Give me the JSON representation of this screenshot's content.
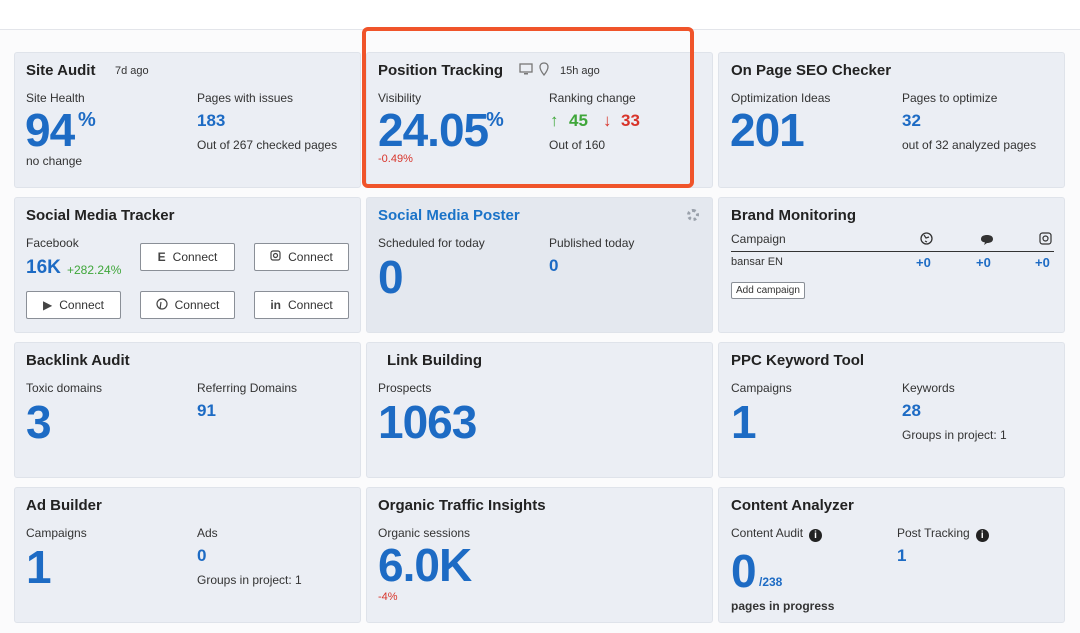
{
  "site_audit": {
    "title": "Site Audit",
    "ago": "7d ago",
    "health_label": "Site Health",
    "health_value": "94",
    "health_unit": "%",
    "health_note": "no change",
    "issues_label": "Pages with issues",
    "issues_value": "183",
    "issues_note": "Out of 267 checked pages"
  },
  "position_tracking": {
    "title": "Position Tracking",
    "ago": "15h ago",
    "visibility_label": "Visibility",
    "visibility_value": "24.05",
    "visibility_unit": "%",
    "visibility_change": "-0.49%",
    "ranking_label": "Ranking change",
    "up_value": "45",
    "down_value": "33",
    "ranking_note": "Out of 160",
    "up_arrow": "↑",
    "down_arrow": "↓"
  },
  "onpage": {
    "title": "On Page SEO Checker",
    "ideas_label": "Optimization Ideas",
    "ideas_value": "201",
    "pages_label": "Pages to optimize",
    "pages_value": "32",
    "pages_note": "out of 32 analyzed pages"
  },
  "social_tracker": {
    "title": "Social Media Tracker",
    "fb_label": "Facebook",
    "fb_value": "16K",
    "fb_change": "+282.24%",
    "connect": "Connect",
    "icons": [
      "twitter-icon",
      "instagram-icon",
      "youtube-icon",
      "pinterest-icon",
      "linkedin-icon"
    ]
  },
  "social_poster": {
    "title": "Social Media Poster",
    "scheduled_label": "Scheduled for today",
    "scheduled_value": "0",
    "published_label": "Published today",
    "published_value": "0"
  },
  "brand": {
    "title": "Brand Monitoring",
    "campaign_label": "Campaign",
    "campaign_name": "bansar EN",
    "val1": "+0",
    "val2": "+0",
    "val3": "+0",
    "add_campaign": "Add campaign"
  },
  "backlink": {
    "title": "Backlink Audit",
    "toxic_label": "Toxic domains",
    "toxic_value": "3",
    "ref_label": "Referring Domains",
    "ref_value": "91"
  },
  "link_building": {
    "title": "Link Building",
    "prospects_label": "Prospects",
    "prospects_value": "1063"
  },
  "ppc": {
    "title": "PPC Keyword Tool",
    "campaigns_label": "Campaigns",
    "campaigns_value": "1",
    "keywords_label": "Keywords",
    "keywords_value": "28",
    "keywords_note": "Groups in project: 1"
  },
  "ad_builder": {
    "title": "Ad Builder",
    "campaigns_label": "Campaigns",
    "campaigns_value": "1",
    "ads_label": "Ads",
    "ads_value": "0",
    "ads_note": "Groups in project: 1"
  },
  "organic": {
    "title": "Organic Traffic Insights",
    "sessions_label": "Organic sessions",
    "sessions_value": "6.0K",
    "sessions_change": "-4%"
  },
  "content": {
    "title": "Content Analyzer",
    "audit_label": "Content Audit",
    "audit_value": "0",
    "audit_total": "/238",
    "audit_note": "pages in progress",
    "post_label": "Post Tracking",
    "post_value": "1",
    "info": "i"
  }
}
